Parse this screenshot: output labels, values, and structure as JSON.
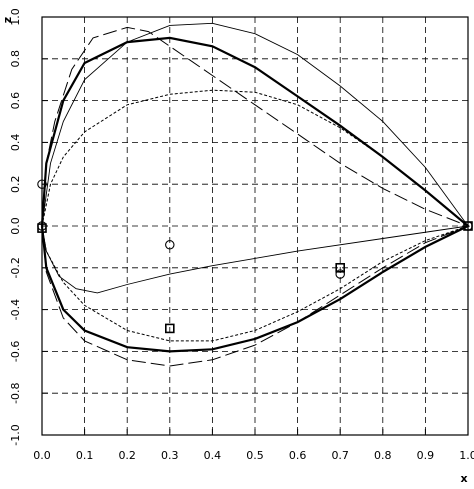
{
  "chart_data": {
    "type": "line",
    "x_label": "x",
    "y_label": "z",
    "xlim": [
      0,
      1
    ],
    "ylim": [
      -1,
      1
    ],
    "xticks": [
      {
        "value": 0,
        "label": "0.0"
      },
      {
        "value": 0.1,
        "label": "0.1"
      },
      {
        "value": 0.2,
        "label": "0.2"
      },
      {
        "value": 0.3,
        "label": "0.3"
      },
      {
        "value": 0.4,
        "label": "0.4"
      },
      {
        "value": 0.5,
        "label": "0.5"
      },
      {
        "value": 0.6,
        "label": "0.6"
      },
      {
        "value": 0.7,
        "label": "0.7"
      },
      {
        "value": 0.8,
        "label": "0.8"
      },
      {
        "value": 0.9,
        "label": "0.9"
      },
      {
        "value": 1,
        "label": "1.0"
      }
    ],
    "yticks": [
      {
        "value": -1,
        "label": "-1.0"
      },
      {
        "value": -0.8,
        "label": "-0.8"
      },
      {
        "value": -0.6,
        "label": "-0.6"
      },
      {
        "value": -0.4,
        "label": "-0.4"
      },
      {
        "value": -0.2,
        "label": "-0.2"
      },
      {
        "value": 0,
        "label": "0.0"
      },
      {
        "value": 0.2,
        "label": "0.2"
      },
      {
        "value": 0.4,
        "label": "0.4"
      },
      {
        "value": 0.6,
        "label": "0.6"
      },
      {
        "value": 0.8,
        "label": "0.8"
      },
      {
        "value": 1,
        "label": "1.0"
      }
    ],
    "grid": true,
    "series": [
      {
        "type": "line",
        "color": "#000000",
        "style": "solid",
        "line_width": 2.2,
        "x": [
          0,
          0.01,
          0.05,
          0.1,
          0.2,
          0.3,
          0.4,
          0.5,
          0.6,
          0.7,
          0.8,
          0.9,
          1,
          0.9,
          0.8,
          0.7,
          0.6,
          0.5,
          0.4,
          0.3,
          0.2,
          0.1,
          0.05,
          0.01,
          0
        ],
        "values": [
          0,
          0.3,
          0.6,
          0.78,
          0.88,
          0.9,
          0.86,
          0.76,
          0.62,
          0.48,
          0.33,
          0.17,
          0,
          -0.1,
          -0.22,
          -0.35,
          -0.46,
          -0.54,
          -0.59,
          -0.6,
          -0.58,
          -0.5,
          -0.4,
          -0.2,
          0
        ]
      },
      {
        "type": "line",
        "color": "#000000",
        "style": "solid",
        "line_width": 0.9,
        "x": [
          0,
          0.02,
          0.05,
          0.1,
          0.2,
          0.3,
          0.4,
          0.5,
          0.6,
          0.7,
          0.8,
          0.9,
          1,
          0.8,
          0.6,
          0.4,
          0.3,
          0.2,
          0.13,
          0.08,
          0.04,
          0.01,
          0
        ],
        "values": [
          0,
          0.3,
          0.5,
          0.7,
          0.88,
          0.96,
          0.97,
          0.92,
          0.82,
          0.67,
          0.5,
          0.28,
          0,
          -0.06,
          -0.12,
          -0.19,
          -0.23,
          -0.28,
          -0.32,
          -0.3,
          -0.24,
          -0.12,
          0
        ]
      },
      {
        "type": "line",
        "color": "#000000",
        "style": "dotted",
        "line_width": 1,
        "x": [
          0,
          0.02,
          0.05,
          0.1,
          0.2,
          0.3,
          0.4,
          0.5,
          0.6,
          0.7,
          0.8,
          0.9,
          1,
          0.9,
          0.8,
          0.7,
          0.6,
          0.5,
          0.4,
          0.3,
          0.2,
          0.1,
          0.05,
          0.01,
          0
        ],
        "values": [
          0,
          0.2,
          0.33,
          0.45,
          0.58,
          0.63,
          0.65,
          0.64,
          0.58,
          0.47,
          0.33,
          0.17,
          0,
          -0.07,
          -0.17,
          -0.3,
          -0.41,
          -0.5,
          -0.55,
          -0.55,
          -0.5,
          -0.38,
          -0.27,
          -0.12,
          0
        ]
      },
      {
        "type": "line",
        "color": "#000000",
        "style": "dashed",
        "line_width": 1,
        "x": [
          0,
          0.01,
          0.03,
          0.07,
          0.12,
          0.2,
          0.25,
          0.3,
          0.4,
          0.5,
          0.6,
          0.7,
          0.8,
          0.9,
          1,
          0.9,
          0.8,
          0.7,
          0.6,
          0.5,
          0.4,
          0.3,
          0.2,
          0.1,
          0.05,
          0.01,
          0
        ],
        "values": [
          0,
          0.3,
          0.5,
          0.75,
          0.9,
          0.95,
          0.93,
          0.86,
          0.72,
          0.58,
          0.44,
          0.3,
          0.18,
          0.08,
          0,
          -0.08,
          -0.2,
          -0.33,
          -0.46,
          -0.57,
          -0.64,
          -0.67,
          -0.64,
          -0.55,
          -0.44,
          -0.22,
          0
        ]
      },
      {
        "type": "scatter",
        "marker": "circle",
        "color": "#000000",
        "x": [
          0,
          0,
          0.3,
          0.7,
          1
        ],
        "values": [
          0.2,
          0,
          -0.09,
          -0.23,
          0
        ]
      },
      {
        "type": "scatter",
        "marker": "square",
        "color": "#000000",
        "x": [
          0,
          0.3,
          0.7,
          1
        ],
        "values": [
          -0.01,
          -0.49,
          -0.2,
          0
        ]
      }
    ]
  }
}
